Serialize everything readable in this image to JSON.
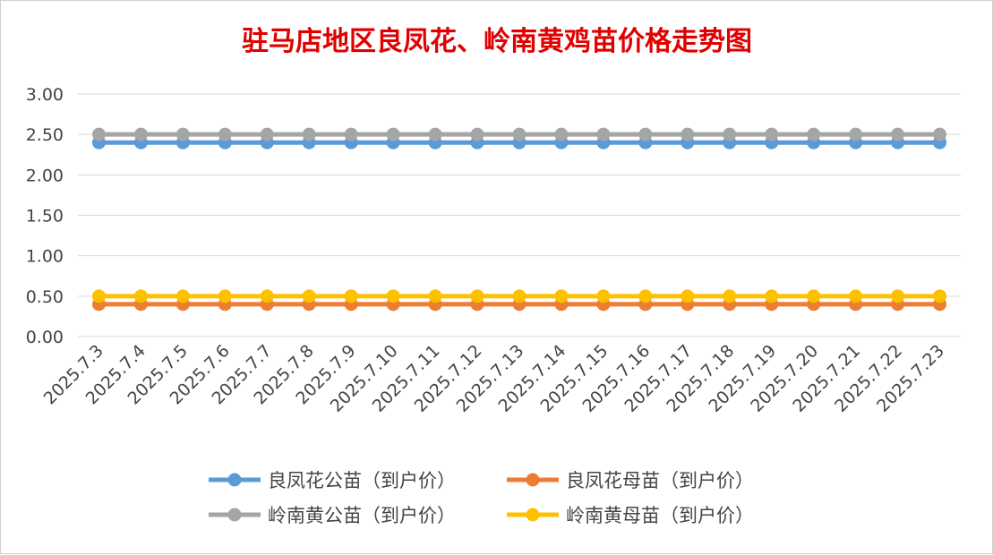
{
  "chart_data": {
    "type": "line",
    "title": "驻马店地区良凤花、岭南黄鸡苗价格走势图",
    "xlabel": "",
    "ylabel": "",
    "ylim": [
      0,
      3
    ],
    "y_ticks": [
      "0.00",
      "0.50",
      "1.00",
      "1.50",
      "2.00",
      "2.50",
      "3.00"
    ],
    "grid": "horizontal",
    "legend_position": "bottom",
    "categories": [
      "2025.7.3",
      "2025.7.4",
      "2025.7.5",
      "2025.7.6",
      "2025.7.7",
      "2025.7.8",
      "2025.7.9",
      "2025.7.10",
      "2025.7.11",
      "2025.7.12",
      "2025.7.13",
      "2025.7.14",
      "2025.7.15",
      "2025.7.16",
      "2025.7.17",
      "2025.7.18",
      "2025.7.19",
      "2025.7.20",
      "2025.7.21",
      "2025.7.22",
      "2025.7.23"
    ],
    "series": [
      {
        "name": "良凤花公苗（到户价）",
        "color": "#5b9bd5",
        "values": [
          2.4,
          2.4,
          2.4,
          2.4,
          2.4,
          2.4,
          2.4,
          2.4,
          2.4,
          2.4,
          2.4,
          2.4,
          2.4,
          2.4,
          2.4,
          2.4,
          2.4,
          2.4,
          2.4,
          2.4,
          2.4
        ]
      },
      {
        "name": "良凤花母苗（到户价）",
        "color": "#ed7d31",
        "values": [
          0.4,
          0.4,
          0.4,
          0.4,
          0.4,
          0.4,
          0.4,
          0.4,
          0.4,
          0.4,
          0.4,
          0.4,
          0.4,
          0.4,
          0.4,
          0.4,
          0.4,
          0.4,
          0.4,
          0.4,
          0.4
        ]
      },
      {
        "name": "岭南黄公苗（到户价）",
        "color": "#a5a5a5",
        "values": [
          2.5,
          2.5,
          2.5,
          2.5,
          2.5,
          2.5,
          2.5,
          2.5,
          2.5,
          2.5,
          2.5,
          2.5,
          2.5,
          2.5,
          2.5,
          2.5,
          2.5,
          2.5,
          2.5,
          2.5,
          2.5
        ]
      },
      {
        "name": "岭南黄母苗（到户价）",
        "color": "#ffc000",
        "values": [
          0.5,
          0.5,
          0.5,
          0.5,
          0.5,
          0.5,
          0.5,
          0.5,
          0.5,
          0.5,
          0.5,
          0.5,
          0.5,
          0.5,
          0.5,
          0.5,
          0.5,
          0.5,
          0.5,
          0.5,
          0.5
        ]
      }
    ]
  }
}
